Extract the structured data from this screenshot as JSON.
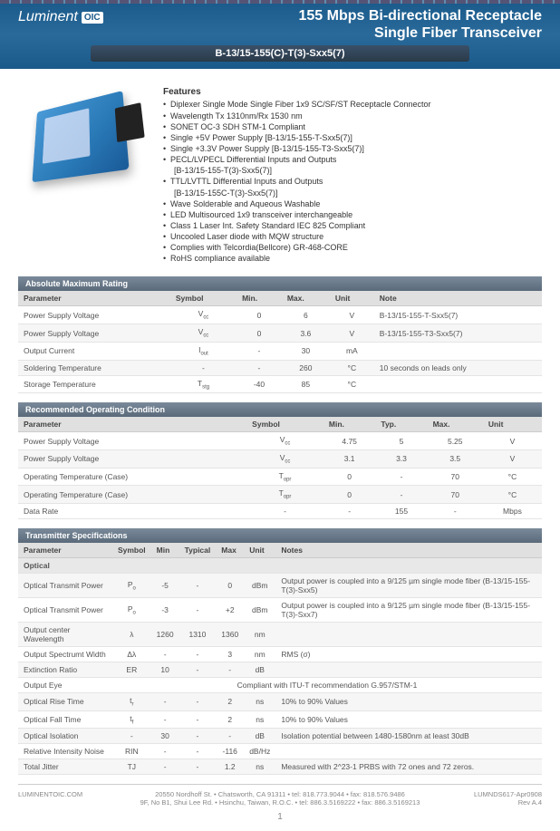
{
  "header": {
    "logo": "Luminent",
    "logo_suffix": "OIC",
    "title_line1": "155 Mbps Bi-directional Receptacle",
    "title_line2": "Single Fiber Transceiver",
    "part_number": "B-13/15-155(C)-T(3)-Sxx5(7)"
  },
  "features": {
    "heading": "Features",
    "items": [
      {
        "t": "Diplexer Single Mode Single Fiber 1x9 SC/SF/ST Receptacle Connector",
        "b": true
      },
      {
        "t": "Wavelength Tx 1310nm/Rx 1530 nm",
        "b": true
      },
      {
        "t": "SONET OC-3 SDH STM-1 Compliant",
        "b": true
      },
      {
        "t": "Single +5V Power Supply [B-13/15-155-T-Sxx5(7)]",
        "b": true
      },
      {
        "t": "Single +3.3V Power Supply [B-13/15-155-T3-Sxx5(7)]",
        "b": true
      },
      {
        "t": "PECL/LVPECL Differential Inputs and Outputs",
        "b": true
      },
      {
        "t": "[B-13/15-155-T(3)-Sxx5(7)]",
        "b": false
      },
      {
        "t": "TTL/LVTTL Differential Inputs and Outputs",
        "b": true
      },
      {
        "t": "[B-13/15-155C-T(3)-Sxx5(7)]",
        "b": false
      },
      {
        "t": "Wave Solderable and Aqueous Washable",
        "b": true
      },
      {
        "t": "LED Multisourced 1x9 transceiver interchangeable",
        "b": true
      },
      {
        "t": "Class 1 Laser Int. Safety Standard IEC 825 Compliant",
        "b": true
      },
      {
        "t": "Uncooled Laser diode with MQW structure",
        "b": true
      },
      {
        "t": "Complies with Telcordia(Bellcore) GR-468-CORE",
        "b": true
      },
      {
        "t": "RoHS compliance available",
        "b": true
      }
    ]
  },
  "tables": {
    "amr": {
      "title": "Absolute Maximum Rating",
      "cols": [
        "Parameter",
        "Symbol",
        "Min.",
        "Max.",
        "Unit",
        "Note"
      ],
      "rows": [
        [
          "Power Supply Voltage",
          "V_cc",
          "0",
          "6",
          "V",
          "B-13/15-155-T-Sxx5(7)"
        ],
        [
          "Power Supply Voltage",
          "V_cc",
          "0",
          "3.6",
          "V",
          "B-13/15-155-T3-Sxx5(7)"
        ],
        [
          "Output Current",
          "I_out",
          "-",
          "30",
          "mA",
          ""
        ],
        [
          "Soldering Temperature",
          "-",
          "-",
          "260",
          "°C",
          "10 seconds on leads only"
        ],
        [
          "Storage Temperature",
          "T_stg",
          "-40",
          "85",
          "°C",
          ""
        ]
      ]
    },
    "roc": {
      "title": "Recommended Operating Condition",
      "cols": [
        "Parameter",
        "Symbol",
        "Min.",
        "Typ.",
        "Max.",
        "Unit"
      ],
      "rows": [
        [
          "Power Supply Voltage",
          "V_cc",
          "4.75",
          "5",
          "5.25",
          "V"
        ],
        [
          "Power Supply Voltage",
          "V_cc",
          "3.1",
          "3.3",
          "3.5",
          "V"
        ],
        [
          "Operating Temperature (Case)",
          "T_opr",
          "0",
          "-",
          "70",
          "°C"
        ],
        [
          "Operating Temperature (Case)",
          "T_opr",
          "0",
          "-",
          "70",
          "°C"
        ],
        [
          "Data Rate",
          "-",
          "-",
          "155",
          "-",
          "Mbps"
        ]
      ]
    },
    "tx": {
      "title": "Transmitter Specifications",
      "cols": [
        "Parameter",
        "Symbol",
        "Min",
        "Typical",
        "Max",
        "Unit",
        "Notes"
      ],
      "section": "Optical",
      "rows": [
        [
          "Optical Transmit Power",
          "P_o",
          "-5",
          "-",
          "0",
          "dBm",
          "Output power is coupled into a 9/125 µm single mode fiber (B-13/15-155-T(3)-Sxx5)"
        ],
        [
          "Optical Transmit Power",
          "P_o",
          "-3",
          "-",
          "+2",
          "dBm",
          "Output power is coupled into a 9/125 µm single mode fiber (B-13/15-155-T(3)-Sxx7)"
        ],
        [
          "Output center Wavelength",
          "λ",
          "1260",
          "1310",
          "1360",
          "nm",
          ""
        ],
        [
          "Output Spectrumt Width",
          "Δλ",
          "-",
          "-",
          "3",
          "nm",
          "RMS (σ)"
        ],
        [
          "Extinction Ratio",
          "ER",
          "10",
          "-",
          "-",
          "dB",
          ""
        ],
        [
          "Output Eye",
          "",
          "Compliant with ITU-T recommendation G.957/STM-1",
          "",
          "",
          "",
          ""
        ],
        [
          "Optical Rise Time",
          "t_r",
          "-",
          "-",
          "2",
          "ns",
          "10% to 90% Values"
        ],
        [
          "Optical Fall Time",
          "t_f",
          "-",
          "-",
          "2",
          "ns",
          "10% to 90% Values"
        ],
        [
          "Optical Isolation",
          "-",
          "30",
          "-",
          "-",
          "dB",
          "Isolation potential between 1480-1580nm at least 30dB"
        ],
        [
          "Relative Intensity Noise",
          "RIN",
          "-",
          "-",
          "-116",
          "dB/Hz",
          ""
        ],
        [
          "Total Jitter",
          "TJ",
          "-",
          "-",
          "1.2",
          "ns",
          "Measured with 2^23-1 PRBS with 72 ones and 72 zeros."
        ]
      ]
    }
  },
  "footer": {
    "site": "LUMINENTOIC.COM",
    "addr1": "20550 Nordhoff St. • Chatsworth, CA  91311 • tel: 818.773.9044 • fax: 818.576.9486",
    "addr2": "9F, No B1, Shui Lee Rd. • Hsinchu, Taiwan, R.O.C. • tel: 886.3.5169222 • fax: 886.3.5169213",
    "doc": "LUMNDS617-Apr0908",
    "rev": "Rev A.4",
    "page": "1"
  },
  "colors": {
    "header_bg": "#1a5a8a",
    "bar_bg": "#6a7a8a",
    "row_alt": "#f6f6f6",
    "border": "#e4e4e4"
  }
}
